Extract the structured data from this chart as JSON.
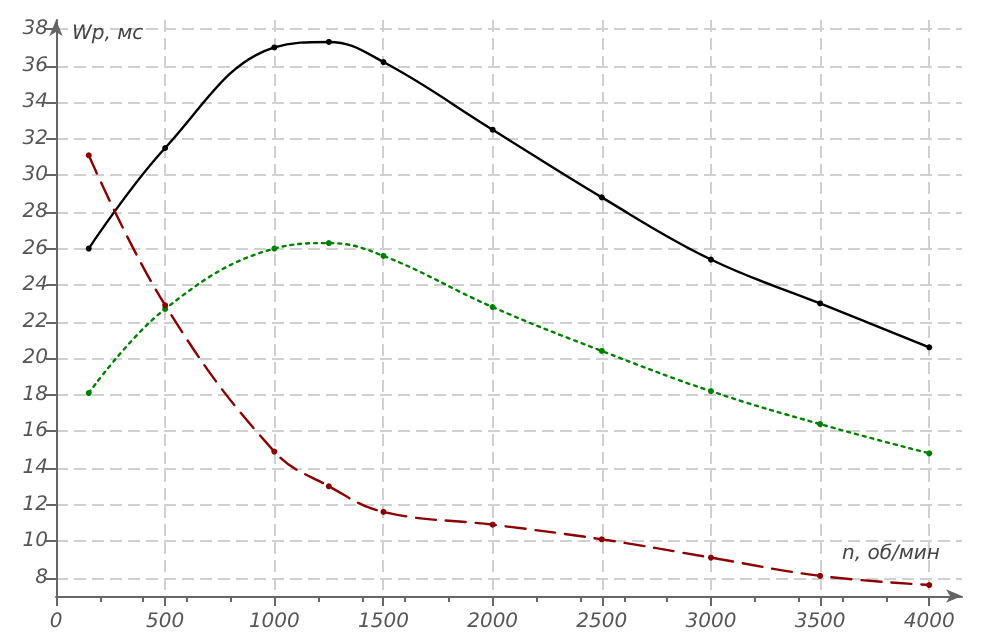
{
  "chart_data": {
    "type": "line",
    "xlabel": "n, об/мин",
    "ylabel": "Wp, мс",
    "x": [
      150,
      500,
      1000,
      1250,
      1500,
      2000,
      2500,
      3000,
      3500,
      4000
    ],
    "series": [
      {
        "color": "#000000",
        "line_style": "solid",
        "values": [
          26,
          31.5,
          37.0,
          37.3,
          36.2,
          32.5,
          28.8,
          25.4,
          23,
          20.6
        ]
      },
      {
        "color": "#008000",
        "line_style": "dotted",
        "values": [
          18.1,
          22.7,
          26,
          26.3,
          25.6,
          22.8,
          20.4,
          18.2,
          16.4,
          14.8
        ]
      },
      {
        "color": "#8b0000",
        "line_style": "dashed",
        "values": [
          31.1,
          22.9,
          14.9,
          13,
          11.6,
          10.9,
          10.1,
          9.1,
          8.1,
          7.6
        ]
      }
    ],
    "xlim": [
      0,
      4150
    ],
    "xticks": [
      0,
      500,
      1000,
      1500,
      2000,
      2500,
      3000,
      3500,
      4000
    ],
    "ylim": [
      7,
      38.5
    ],
    "yticks": [
      8,
      10,
      12,
      14,
      16,
      18,
      20,
      22,
      24,
      26,
      28,
      30,
      32,
      34,
      36,
      38
    ],
    "grid": true,
    "marker": "circle"
  }
}
